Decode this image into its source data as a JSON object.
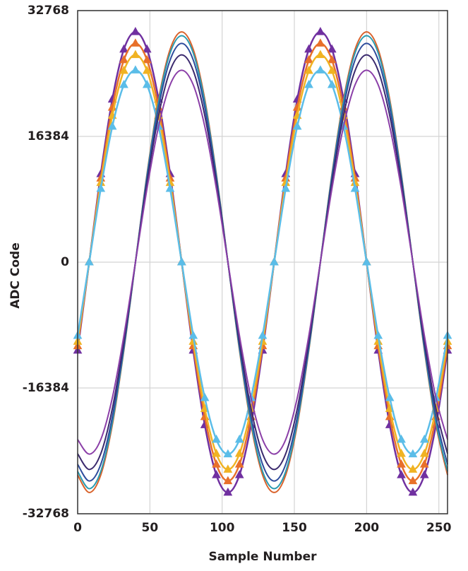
{
  "chart_data": {
    "type": "line",
    "xlabel": "Sample Number",
    "ylabel": "ADC Code",
    "x": [
      0,
      8,
      16,
      24,
      32,
      40,
      48,
      56,
      64,
      72,
      80,
      88,
      96,
      104,
      112,
      120,
      128,
      136,
      144,
      152,
      160,
      168,
      176,
      184,
      192,
      200,
      208,
      216,
      224,
      232,
      240,
      248,
      256
    ],
    "xlim": [
      0,
      256
    ],
    "xticks": [
      0,
      50,
      100,
      150,
      200,
      250
    ],
    "ylim": [
      -32768,
      32768
    ],
    "yticks": [
      -32768,
      -16384,
      0,
      16384,
      32768
    ],
    "grid": true,
    "series": [
      {
        "color": "#7030a0",
        "marker": "triangle",
        "values": [
          -11490,
          0,
          11490,
          21210,
          27720,
          30000,
          27720,
          21210,
          11490,
          0,
          -11490,
          -21210,
          -27720,
          -30000,
          -27720,
          -21210,
          -11490,
          0,
          11490,
          21210,
          27720,
          30000,
          27720,
          21210,
          11490,
          0,
          -11490,
          -21210,
          -27720,
          -30000,
          -27720,
          -21210,
          -11490
        ]
      },
      {
        "color": "#e8702a",
        "marker": "triangle",
        "values": [
          -10916,
          0,
          10916,
          20150,
          26334,
          28500,
          26334,
          20150,
          10916,
          0,
          -10916,
          -20150,
          -26334,
          -28500,
          -26334,
          -20150,
          -10916,
          0,
          10916,
          20150,
          26334,
          28500,
          26334,
          20150,
          10916,
          0,
          -10916,
          -20150,
          -26334,
          -28500,
          -26334,
          -20150,
          -10916
        ]
      },
      {
        "color": "#f0b323",
        "marker": "triangle",
        "values": [
          -10341,
          0,
          10341,
          19089,
          24948,
          27000,
          24948,
          19089,
          10341,
          0,
          -10341,
          -19089,
          -24948,
          -27000,
          -24948,
          -19089,
          -10341,
          0,
          10341,
          19089,
          24948,
          27000,
          24948,
          19089,
          10341,
          0,
          -10341,
          -19089,
          -24948,
          -27000,
          -24948,
          -19089,
          -10341
        ]
      },
      {
        "color": "#5bbde8",
        "marker": "triangle",
        "values": [
          -9575,
          0,
          9575,
          17675,
          23100,
          25000,
          23100,
          17675,
          9575,
          0,
          -9575,
          -17675,
          -23100,
          -25000,
          -23100,
          -17675,
          -9575,
          0,
          9575,
          17675,
          23100,
          25000,
          23100,
          17675,
          9575,
          0,
          -9575,
          -17675,
          -23100,
          -25000,
          -23100,
          -17675,
          -9575
        ]
      },
      {
        "color": "#d9622b",
        "values": [
          -27720,
          -30000,
          -27720,
          -21210,
          -11490,
          0,
          11490,
          21210,
          27720,
          30000,
          27720,
          21210,
          11490,
          0,
          -11490,
          -21210,
          -27720,
          -30000,
          -27720,
          -21210,
          -11490,
          0,
          11490,
          21210,
          27720,
          30000,
          27720,
          21210,
          11490,
          0,
          -11490,
          -21210,
          -27720
        ]
      },
      {
        "color": "#2a9bb0",
        "values": [
          -27258,
          -29500,
          -27258,
          -20857,
          -11299,
          0,
          11299,
          20857,
          27258,
          29500,
          27258,
          20857,
          11299,
          0,
          -11299,
          -20857,
          -27258,
          -29500,
          -27258,
          -20857,
          -11299,
          0,
          11299,
          20857,
          27258,
          29500,
          27258,
          20857,
          11299,
          0,
          -11299,
          -20857,
          -27258
        ]
      },
      {
        "color": "#2e4c9c",
        "values": [
          -26334,
          -28500,
          -26334,
          -20150,
          -10916,
          0,
          10916,
          20150,
          26334,
          28500,
          26334,
          20150,
          10916,
          0,
          -10916,
          -20150,
          -26334,
          -28500,
          -26334,
          -20150,
          -10916,
          0,
          10916,
          20150,
          26334,
          28500,
          26334,
          20150,
          10916,
          0,
          -10916,
          -20150,
          -26334
        ]
      },
      {
        "color": "#3b2a6e",
        "values": [
          -24948,
          -27000,
          -24948,
          -19089,
          -10341,
          0,
          10341,
          19089,
          24948,
          27000,
          24948,
          19089,
          10341,
          0,
          -10341,
          -19089,
          -24948,
          -27000,
          -24948,
          -19089,
          -10341,
          0,
          10341,
          19089,
          24948,
          27000,
          24948,
          19089,
          10341,
          0,
          -10341,
          -19089,
          -24948
        ]
      },
      {
        "color": "#8b3fa8",
        "values": [
          -23100,
          -25000,
          -23100,
          -17675,
          -9575,
          0,
          9575,
          17675,
          23100,
          25000,
          23100,
          17675,
          9575,
          0,
          -9575,
          -17675,
          -23100,
          -25000,
          -23100,
          -17675,
          -9575,
          0,
          9575,
          17675,
          23100,
          25000,
          23100,
          17675,
          9575,
          0,
          -9575,
          -17675,
          -23100
        ]
      }
    ]
  }
}
